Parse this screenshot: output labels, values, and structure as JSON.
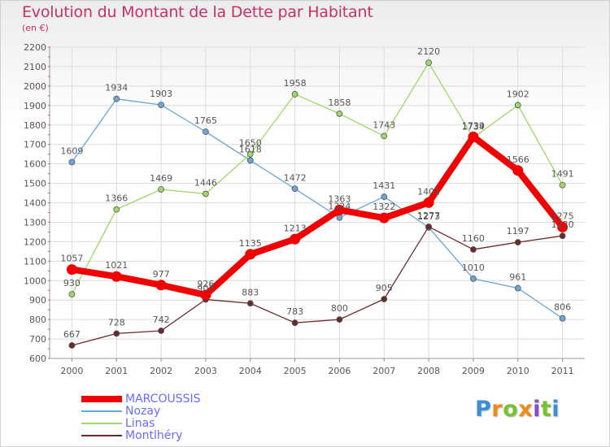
{
  "header": {
    "title": "Evolution du Montant de la Dette par Habitant",
    "unit": "(en €)"
  },
  "brand": {
    "logo_text": "Proxiti",
    "logo_colors": [
      "#3a8fd8",
      "#f08a1c",
      "#78c232",
      "#f08a1c",
      "#8a4cc8",
      "#78c232",
      "#3a8fd8"
    ]
  },
  "chart_data": {
    "type": "line",
    "x": [
      "2000",
      "2001",
      "2002",
      "2003",
      "2004",
      "2005",
      "2006",
      "2007",
      "2008",
      "2009",
      "2010",
      "2011"
    ],
    "ylim": [
      600,
      2200
    ],
    "yticks": [
      600,
      700,
      800,
      900,
      1000,
      1100,
      1200,
      1300,
      1400,
      1500,
      1600,
      1700,
      1800,
      1900,
      2000,
      2100,
      2200
    ],
    "grid": true,
    "legend_position": "bottom-left",
    "series": [
      {
        "name": "Nozay",
        "color": "#6aa6d6",
        "values": [
          1609,
          1934,
          1903,
          1765,
          1618,
          1472,
          1324,
          1431,
          1273,
          1010,
          961,
          806
        ]
      },
      {
        "name": "Linas",
        "color": "#9ed86a",
        "values": [
          930,
          1366,
          1469,
          1446,
          1650,
          1958,
          1858,
          1743,
          2120,
          1734,
          1902,
          1491
        ]
      },
      {
        "name": "Montlhéry",
        "color": "#6a2a2a",
        "values": [
          667,
          728,
          742,
          903,
          883,
          783,
          800,
          905,
          1277,
          1160,
          1197,
          1230
        ]
      },
      {
        "name": "MARCOUSSIS",
        "color": "#f00000",
        "values": [
          1057,
          1021,
          977,
          926,
          1135,
          1213,
          1363,
          1322,
          1401,
          1739,
          1566,
          1275
        ]
      }
    ]
  }
}
